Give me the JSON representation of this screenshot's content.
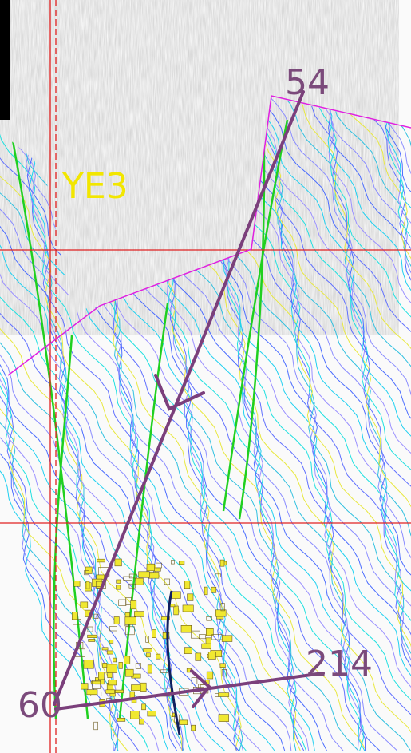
{
  "labels": {
    "top": "54",
    "zone": "YE3",
    "right": "214",
    "bottom": "60"
  }
}
